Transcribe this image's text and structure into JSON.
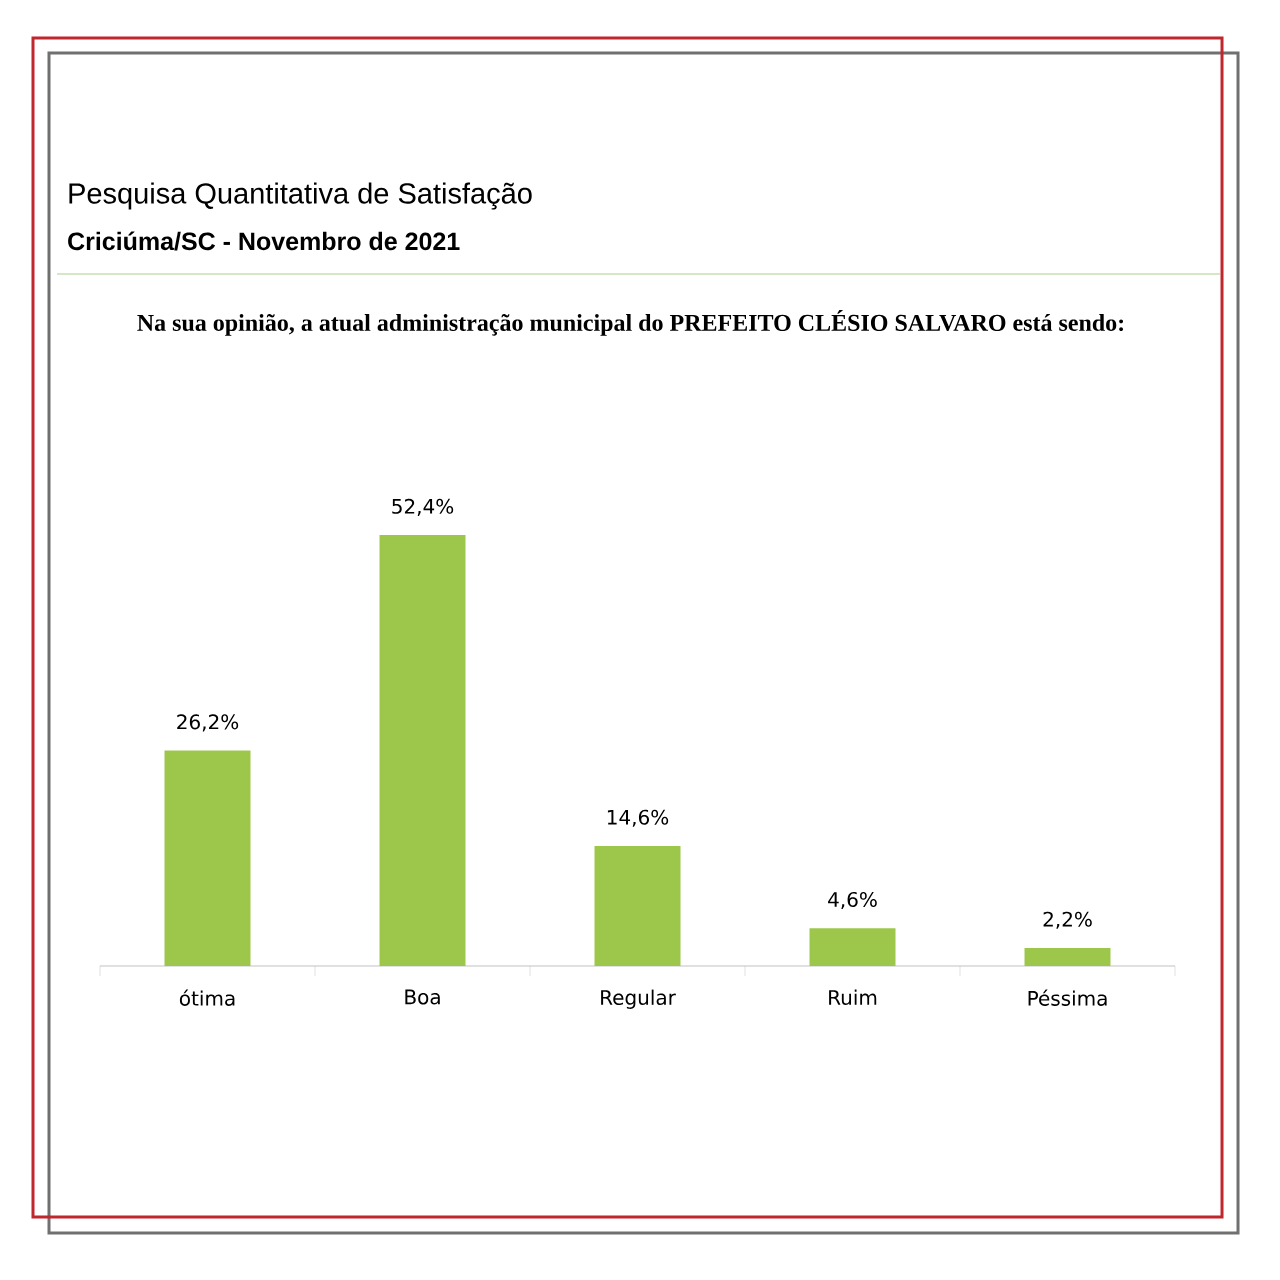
{
  "chart_data": {
    "type": "bar",
    "title": "Pesquisa Quantitativa de Satisfação",
    "subtitle": "Criciúma/SC - Novembro de 2021",
    "annotations": [
      "Na sua opinião, a atual administração municipal do PREFEITO CLÉSIO SALVARO está sendo:"
    ],
    "categories": [
      "ótima",
      "Boa",
      "Regular",
      "Ruim",
      "Péssima"
    ],
    "values": [
      26.2,
      52.4,
      14.6,
      4.6,
      2.2
    ],
    "value_labels": [
      "26,2%",
      "52,4%",
      "14,6%",
      "4,6%",
      "2,2%"
    ],
    "color": "#9dc74a"
  }
}
